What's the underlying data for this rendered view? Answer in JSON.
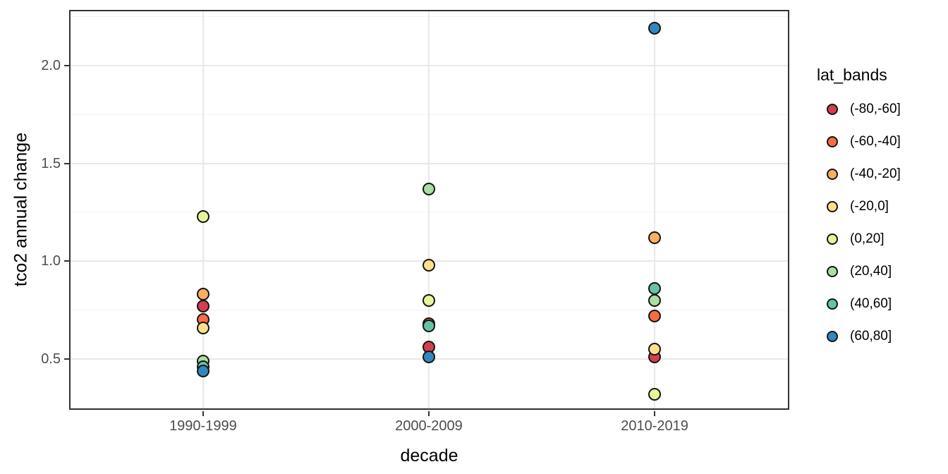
{
  "chart_data": {
    "type": "scatter",
    "title": "",
    "xlabel": "decade",
    "ylabel": "tco2 annual change",
    "categories": [
      "1990-1999",
      "2000-2009",
      "2010-2019"
    ],
    "ylim": [
      0.24,
      2.285
    ],
    "yticks": [
      0.5,
      1.0,
      1.5,
      2.0
    ],
    "yticks_minor": [
      0.25,
      0.75,
      1.25,
      1.75,
      2.25
    ],
    "grid": true,
    "legend": {
      "title": "lat_bands",
      "position": "right",
      "entries": [
        {
          "label": "(-80,-60]",
          "color": "#d53e4f"
        },
        {
          "label": "(-60,-40]",
          "color": "#f46d43"
        },
        {
          "label": "(-40,-20]",
          "color": "#fdae61"
        },
        {
          "label": "(-20,0]",
          "color": "#fee08b"
        },
        {
          "label": "(0,20]",
          "color": "#e6f598"
        },
        {
          "label": "(20,40]",
          "color": "#abdda4"
        },
        {
          "label": "(40,60]",
          "color": "#66c2a5"
        },
        {
          "label": "(60,80]",
          "color": "#3288bd"
        }
      ]
    },
    "series": [
      {
        "name": "(-80,-60]",
        "color": "#d53e4f",
        "values": [
          0.77,
          0.56,
          0.51
        ]
      },
      {
        "name": "(-60,-40]",
        "color": "#f46d43",
        "values": [
          0.7,
          0.68,
          0.72
        ]
      },
      {
        "name": "(-40,-20]",
        "color": "#fdae61",
        "values": [
          0.83,
          null,
          1.12
        ]
      },
      {
        "name": "(-20,0]",
        "color": "#fee08b",
        "values": [
          0.66,
          0.98,
          0.55
        ]
      },
      {
        "name": "(0,20]",
        "color": "#e6f598",
        "values": [
          1.23,
          0.8,
          0.32
        ]
      },
      {
        "name": "(20,40]",
        "color": "#abdda4",
        "values": [
          0.49,
          1.37,
          0.8
        ]
      },
      {
        "name": "(40,60]",
        "color": "#66c2a5",
        "values": [
          0.46,
          0.67,
          0.86
        ]
      },
      {
        "name": "(60,80]",
        "color": "#3288bd",
        "values": [
          0.44,
          0.51,
          2.19
        ]
      }
    ],
    "style_colors": {
      "axis_text": "#4d4d4d",
      "grid_major": "#e8e8e8",
      "panel_border": "#333333",
      "point_stroke": "#141414"
    }
  }
}
